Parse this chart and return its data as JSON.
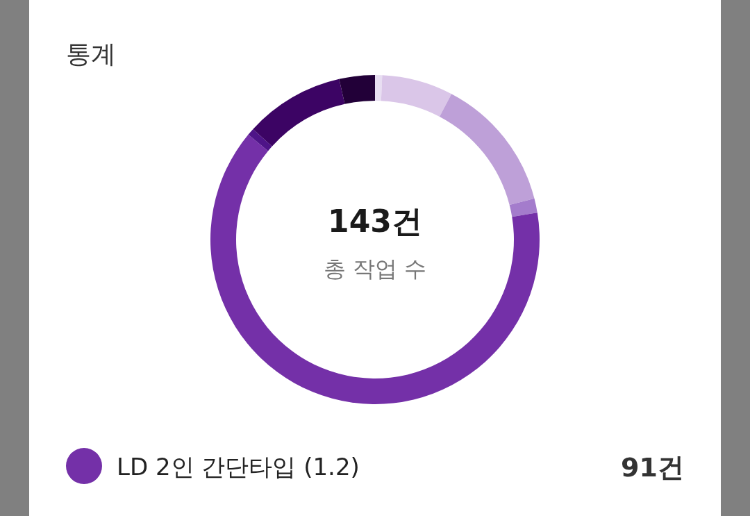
{
  "chart_data": {
    "type": "donut",
    "title": "통계",
    "categories": [
      null,
      null,
      null,
      null,
      "LD 2인 간단타입 (1.2)",
      null,
      null,
      null
    ],
    "values": [
      1,
      10,
      19,
      2,
      91,
      1,
      14,
      5
    ],
    "colors": [
      "#e8def2",
      "#dac6e8",
      "#bea0d8",
      "#a47ccc",
      "#7430a8",
      "#4e1488",
      "#3c0464",
      "#220038"
    ],
    "value_labels": [
      null,
      null,
      null,
      null,
      "91건",
      null,
      null,
      null
    ],
    "annotations": [
      "143건",
      "총 작업 수"
    ],
    "legend": "bottom"
  }
}
